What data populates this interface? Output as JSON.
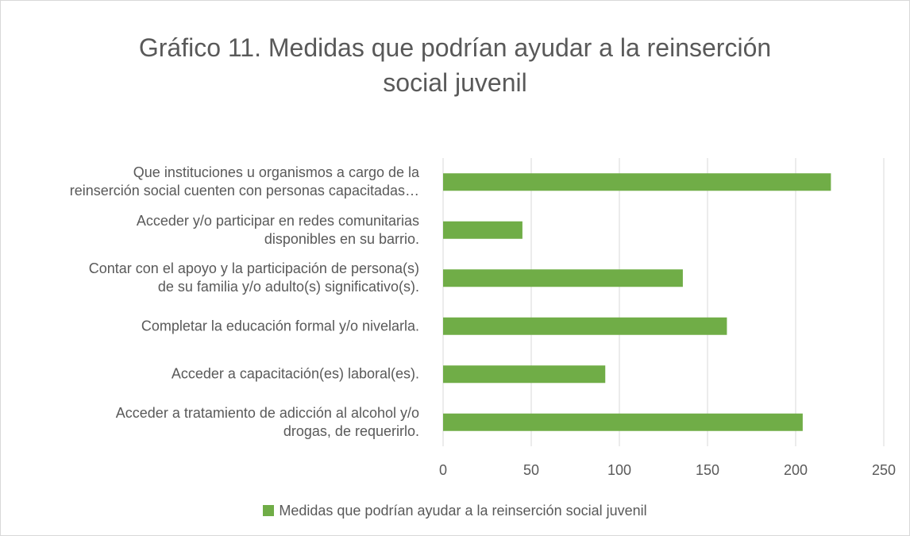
{
  "chart_data": {
    "type": "bar",
    "orientation": "horizontal",
    "title": "Gráfico 11. Medidas que podrían ayudar a la reinserción\nsocial juvenil",
    "categories": [
      "Que instituciones u organismos a cargo de la\nreinserción social cuenten con personas capacitadas…",
      "Acceder y/o participar en redes comunitarias\ndisponibles en su barrio.",
      "Contar con el apoyo y la participación de persona(s)\nde su familia y/o adulto(s) significativo(s).",
      "Completar la educación formal y/o nivelarla.",
      "Acceder a capacitación(es) laboral(es).",
      "Acceder a tratamiento de adicción al alcohol y/o\ndrogas, de requerirlo."
    ],
    "series": [
      {
        "name": "Medidas que podrían ayudar a la reinserción social juvenil",
        "color": "#70ad47",
        "values": [
          220,
          45,
          136,
          161,
          92,
          204
        ]
      }
    ],
    "xlim": [
      0,
      250
    ],
    "xticks": [
      0,
      50,
      100,
      150,
      200,
      250
    ],
    "grid": true,
    "legend": "bottom"
  }
}
